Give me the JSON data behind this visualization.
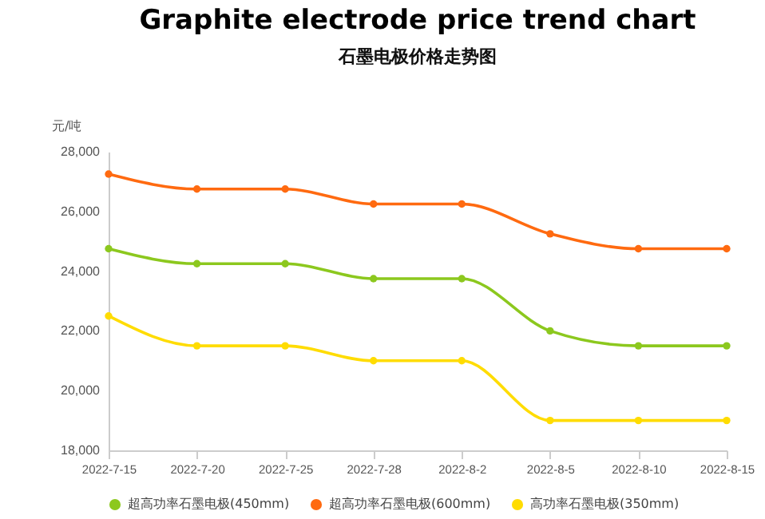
{
  "chart_data": {
    "type": "line",
    "title": "Graphite electrode price trend chart",
    "subtitle": "石墨电极价格走势图",
    "ylabel": "元/吨",
    "categories": [
      "2022-7-15",
      "2022-7-20",
      "2022-7-25",
      "2022-7-28",
      "2022-8-2",
      "2022-8-5",
      "2022-8-10",
      "2022-8-15"
    ],
    "series": [
      {
        "name": "超高功率石墨电极(450mm)",
        "color": "#8cc81e",
        "values": [
          24750,
          24250,
          24250,
          23750,
          23750,
          22000,
          21500,
          21500
        ]
      },
      {
        "name": "超高功率石墨电极(600mm)",
        "color": "#ff6a10",
        "values": [
          27250,
          26750,
          26750,
          26250,
          26250,
          25250,
          24750,
          24750
        ]
      },
      {
        "name": "高功率石墨电极(350mm)",
        "color": "#ffdc00",
        "values": [
          22500,
          21500,
          21500,
          21000,
          21000,
          19000,
          19000,
          19000
        ]
      }
    ],
    "ylim": [
      18000,
      28000
    ],
    "yticks": [
      {
        "value": 18000,
        "label": "18,000"
      },
      {
        "value": 20000,
        "label": "20,000"
      },
      {
        "value": 22000,
        "label": "22,000"
      },
      {
        "value": 24000,
        "label": "24,000"
      },
      {
        "value": 26000,
        "label": "26,000"
      },
      {
        "value": 28000,
        "label": "28,000"
      }
    ],
    "grid": false,
    "legend": "bottom",
    "marker": "circle",
    "line_style": "solid"
  }
}
